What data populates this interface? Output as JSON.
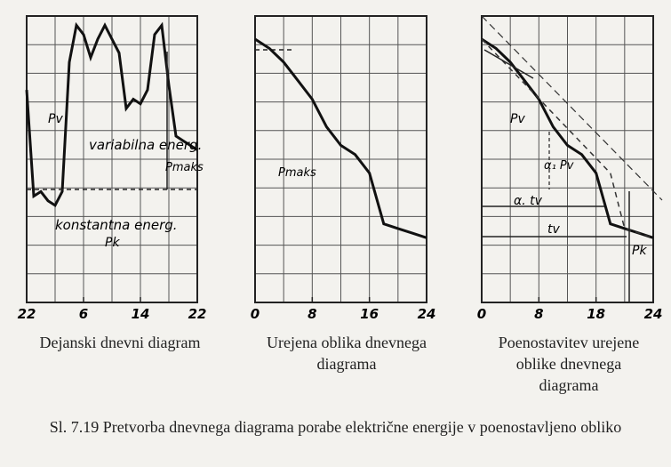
{
  "chart_data": [
    {
      "type": "line",
      "title": "Dejanski dnevni diagram",
      "x_ticks": [
        "22",
        "6",
        "14",
        "22"
      ],
      "x": [
        0,
        1,
        2,
        3,
        4,
        5,
        6,
        7,
        8,
        9,
        10,
        11,
        12,
        13,
        14,
        15,
        16,
        17,
        18,
        19,
        20,
        21,
        22,
        23,
        24
      ],
      "values": [
        0.46,
        0.23,
        0.24,
        0.22,
        0.21,
        0.24,
        0.52,
        0.6,
        0.58,
        0.53,
        0.57,
        0.6,
        0.57,
        0.54,
        0.42,
        0.44,
        0.43,
        0.46,
        0.58,
        0.6,
        0.47,
        0.36,
        0.35,
        0.34,
        0.33
      ],
      "annotations": [
        "Pv",
        "variabilna energ.",
        "Pmaks",
        "konstantna energ.",
        "Pk"
      ]
    },
    {
      "type": "line",
      "title": "Urejena oblika dnevnega diagrama",
      "x_ticks": [
        "0",
        "8",
        "16",
        "24"
      ],
      "x": [
        0,
        2,
        4,
        6,
        8,
        10,
        12,
        14,
        16,
        18,
        20,
        22,
        24
      ],
      "values": [
        0.57,
        0.55,
        0.52,
        0.48,
        0.44,
        0.38,
        0.34,
        0.32,
        0.28,
        0.17,
        0.16,
        0.15,
        0.14
      ],
      "annotations": [
        "Pmaks"
      ]
    },
    {
      "type": "line",
      "title": "Poenostavitev urejene oblike dnevnega diagrama",
      "x_ticks": [
        "0",
        "8",
        "18",
        "24"
      ],
      "x": [
        0,
        2,
        4,
        6,
        8,
        10,
        12,
        14,
        16,
        18,
        20,
        22,
        24
      ],
      "values": [
        0.57,
        0.55,
        0.52,
        0.48,
        0.44,
        0.38,
        0.34,
        0.32,
        0.28,
        0.17,
        0.16,
        0.15,
        0.14
      ],
      "simplified": {
        "x": [
          0,
          18,
          20,
          24
        ],
        "values": [
          0.57,
          0.28,
          0.16,
          0.14
        ]
      },
      "annotations": [
        "Pv",
        "α₁ Pv",
        "α. tv",
        "tv",
        "Pk"
      ]
    }
  ],
  "captions": {
    "c1": "Dejanski dnevni diagram",
    "c2a": "Urejena oblika dnevnega",
    "c2b": "diagrama",
    "c3a": "Poenostavitev urejene",
    "c3b": "oblike dnevnega",
    "c3c": "diagrama"
  },
  "figure_caption": "Sl. 7.19 Pretvorba dnevnega diagrama porabe električne energije v poenostavljeno obliko"
}
